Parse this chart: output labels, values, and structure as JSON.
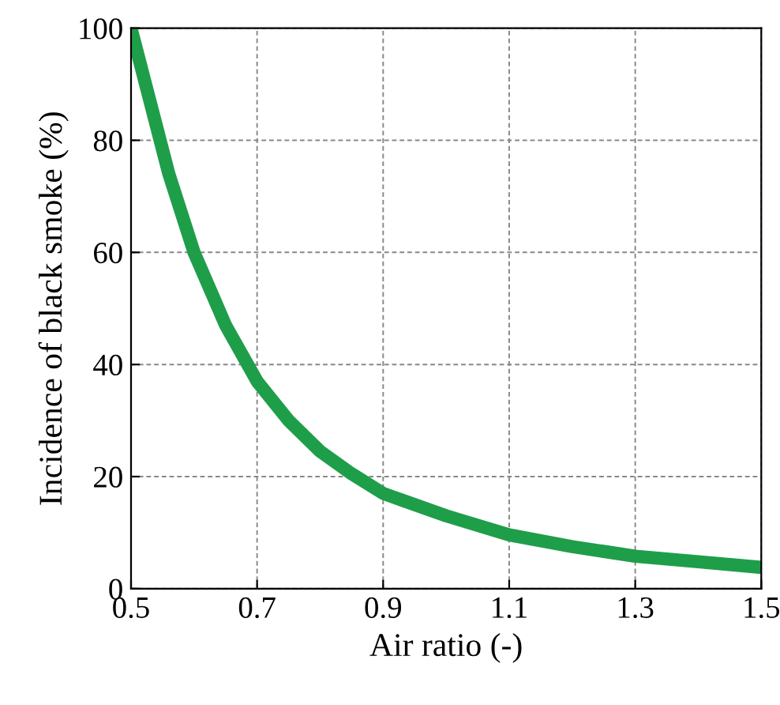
{
  "chart_data": {
    "type": "line",
    "xlabel": "Air ratio (-)",
    "ylabel": "Incidence of black smoke (%)",
    "x": [
      0.5,
      0.53,
      0.56,
      0.6,
      0.65,
      0.7,
      0.75,
      0.8,
      0.85,
      0.9,
      1.0,
      1.1,
      1.2,
      1.3,
      1.4,
      1.5
    ],
    "series": [
      {
        "color": "#1f9e4a",
        "values": [
          100,
          87,
          74,
          60,
          47,
          37,
          30,
          24.5,
          20.5,
          17,
          13,
          9.6,
          7.5,
          5.8,
          4.8,
          3.8
        ]
      }
    ],
    "xlim": [
      0.5,
      1.5
    ],
    "ylim": [
      0,
      100
    ],
    "xticks": [
      0.5,
      0.7,
      0.9,
      1.1,
      1.3,
      1.5
    ],
    "yticks": [
      0,
      20,
      40,
      60,
      80,
      100
    ],
    "grid": true,
    "marker": "none",
    "line_style": "solid",
    "legend": false
  }
}
